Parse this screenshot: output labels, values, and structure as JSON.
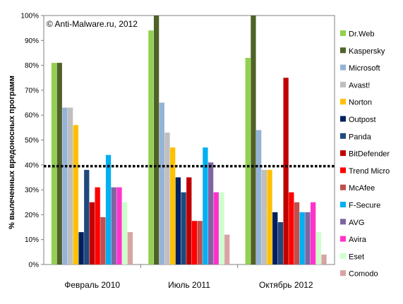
{
  "chart_data": {
    "type": "bar",
    "title": "",
    "annotation": "© Anti-Malware.ru,  2012",
    "xlabel": "",
    "ylabel": "% вылеченных вредоносных программ",
    "ylim": [
      0,
      100
    ],
    "yticks": [
      "0%",
      "10%",
      "20%",
      "30%",
      "40%",
      "50%",
      "60%",
      "70%",
      "80%",
      "90%",
      "100%"
    ],
    "reference_line": 39.5,
    "grid": false,
    "legend_position": "right",
    "categories": [
      "Февраль 2010",
      "Июль 2011",
      "Октябрь 2012"
    ],
    "series": [
      {
        "name": "Dr.Web",
        "color": "#92d050",
        "values": [
          81,
          94,
          83
        ]
      },
      {
        "name": "Kaspersky",
        "color": "#4f6228",
        "values": [
          81,
          100,
          100
        ]
      },
      {
        "name": "Microsoft",
        "color": "#95b3d7",
        "values": [
          63,
          65,
          54
        ]
      },
      {
        "name": "Avast!",
        "color": "#bfbfbf",
        "values": [
          63,
          53,
          38
        ]
      },
      {
        "name": "Norton",
        "color": "#ffc000",
        "values": [
          56,
          47,
          38
        ]
      },
      {
        "name": "Outpost",
        "color": "#002060",
        "values": [
          13,
          35,
          21
        ]
      },
      {
        "name": "Panda",
        "color": "#1f497d",
        "values": [
          38,
          29,
          17
        ]
      },
      {
        "name": "BitDefender",
        "color": "#c00000",
        "values": [
          25,
          35,
          75
        ]
      },
      {
        "name": "Trend Micro",
        "color": "#ff0000",
        "values": [
          31,
          17.5,
          29
        ]
      },
      {
        "name": "McAfee",
        "color": "#c0504d",
        "values": [
          19,
          17.5,
          25
        ]
      },
      {
        "name": "F-Secure",
        "color": "#00b0f0",
        "values": [
          44,
          47,
          21
        ]
      },
      {
        "name": "AVG",
        "color": "#8064a2",
        "values": [
          31,
          41,
          21
        ]
      },
      {
        "name": "Avira",
        "color": "#ff33cc",
        "values": [
          31,
          29,
          25
        ]
      },
      {
        "name": "Eset",
        "color": "#ccffcc",
        "values": [
          25,
          29,
          13
        ]
      },
      {
        "name": "Comodo",
        "color": "#d9a3a3",
        "values": [
          13,
          12,
          4
        ]
      }
    ]
  }
}
